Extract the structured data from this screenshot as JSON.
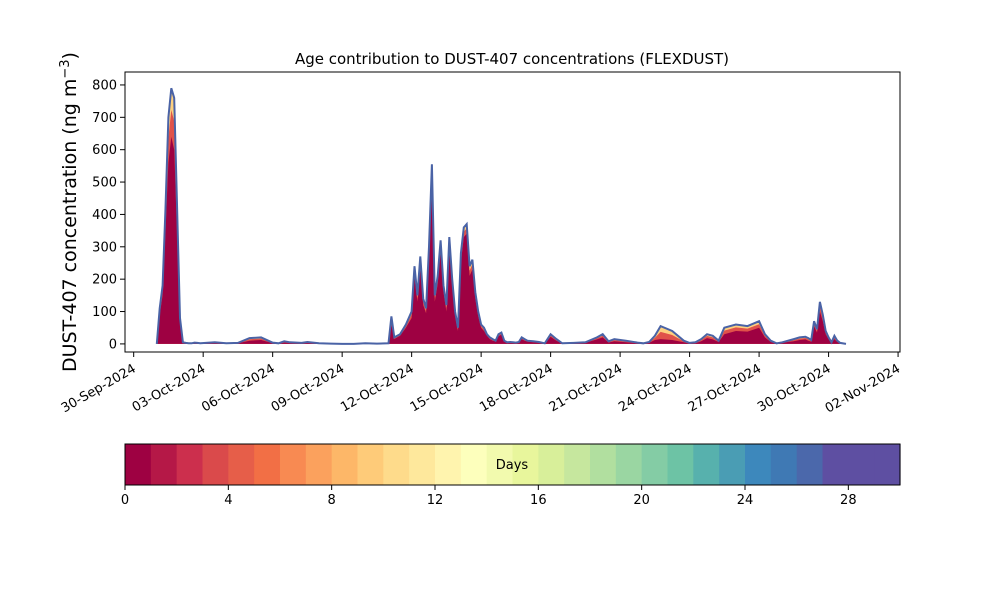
{
  "chart_data": {
    "type": "area",
    "title": "Age contribution to DUST-407 concentrations (FLEXDUST)",
    "ylabel_main": "DUST-407 concentration (ng m",
    "ylabel_sup": "−3",
    "ylabel_tail": ")",
    "xlabel": "",
    "xlim": [
      "2024-09-29T15:00",
      "2024-11-02T02:00"
    ],
    "ylim": [
      -25,
      840
    ],
    "yticks": [
      0,
      100,
      200,
      300,
      400,
      500,
      600,
      700,
      800
    ],
    "xticks": [
      {
        "date": "2024-09-30",
        "label": "30-Sep-2024"
      },
      {
        "date": "2024-10-03",
        "label": "03-Oct-2024"
      },
      {
        "date": "2024-10-06",
        "label": "06-Oct-2024"
      },
      {
        "date": "2024-10-09",
        "label": "09-Oct-2024"
      },
      {
        "date": "2024-10-12",
        "label": "12-Oct-2024"
      },
      {
        "date": "2024-10-15",
        "label": "15-Oct-2024"
      },
      {
        "date": "2024-10-18",
        "label": "18-Oct-2024"
      },
      {
        "date": "2024-10-21",
        "label": "21-Oct-2024"
      },
      {
        "date": "2024-10-24",
        "label": "24-Oct-2024"
      },
      {
        "date": "2024-10-27",
        "label": "27-Oct-2024"
      },
      {
        "date": "2024-10-30",
        "label": "30-Oct-2024"
      },
      {
        "date": "2024-11-02",
        "label": "02-Nov-2024"
      }
    ],
    "grid": false,
    "outline_color": "#4a63a6",
    "series": [
      {
        "x": [
          "2024-10-01T00:00",
          "2024-10-01T03:00",
          "2024-10-01T06:00",
          "2024-10-01T09:00",
          "2024-10-01T12:00",
          "2024-10-01T15:00",
          "2024-10-01T18:00",
          "2024-10-01T21:00",
          "2024-10-02T00:00",
          "2024-10-02T03:00",
          "2024-10-02T06:00",
          "2024-10-02T09:00",
          "2024-10-02T12:00",
          "2024-10-02T15:00",
          "2024-10-02T18:00",
          "2024-10-02T21:00",
          "2024-10-03T12:00",
          "2024-10-04T00:00",
          "2024-10-04T12:00",
          "2024-10-05T00:00",
          "2024-10-05T12:00",
          "2024-10-06T00:00",
          "2024-10-06T06:00",
          "2024-10-06T12:00",
          "2024-10-06T18:00",
          "2024-10-07T06:00",
          "2024-10-07T12:00",
          "2024-10-08T00:00",
          "2024-10-08T12:00",
          "2024-10-09T00:00",
          "2024-10-09T12:00",
          "2024-10-10T00:00",
          "2024-10-10T12:00",
          "2024-10-11T00:00",
          "2024-10-11T03:00",
          "2024-10-11T06:00",
          "2024-10-11T09:00",
          "2024-10-11T12:00",
          "2024-10-11T18:00",
          "2024-10-12T00:00",
          "2024-10-12T03:00",
          "2024-10-12T06:00",
          "2024-10-12T09:00",
          "2024-10-12T12:00",
          "2024-10-12T15:00",
          "2024-10-12T18:00",
          "2024-10-12T21:00",
          "2024-10-13T00:00",
          "2024-10-13T03:00",
          "2024-10-13T06:00",
          "2024-10-13T09:00",
          "2024-10-13T12:00",
          "2024-10-13T15:00",
          "2024-10-13T18:00",
          "2024-10-13T21:00",
          "2024-10-14T00:00",
          "2024-10-14T03:00",
          "2024-10-14T06:00",
          "2024-10-14T09:00",
          "2024-10-14T12:00",
          "2024-10-14T15:00",
          "2024-10-14T18:00",
          "2024-10-14T21:00",
          "2024-10-15T00:00",
          "2024-10-15T03:00",
          "2024-10-15T06:00",
          "2024-10-15T09:00",
          "2024-10-15T12:00",
          "2024-10-15T15:00",
          "2024-10-15T18:00",
          "2024-10-15T21:00",
          "2024-10-16T00:00",
          "2024-10-16T03:00",
          "2024-10-16T06:00",
          "2024-10-16T09:00",
          "2024-10-16T12:00",
          "2024-10-16T15:00",
          "2024-10-16T18:00",
          "2024-10-16T21:00",
          "2024-10-17T00:00",
          "2024-10-17T06:00",
          "2024-10-17T12:00",
          "2024-10-17T18:00",
          "2024-10-18T00:00",
          "2024-10-18T06:00",
          "2024-10-18T12:00",
          "2024-10-19T00:00",
          "2024-10-19T12:00",
          "2024-10-20T00:00",
          "2024-10-20T06:00",
          "2024-10-20T12:00",
          "2024-10-20T18:00",
          "2024-10-21T06:00",
          "2024-10-21T18:00",
          "2024-10-22T00:00",
          "2024-10-22T06:00",
          "2024-10-22T12:00",
          "2024-10-22T18:00",
          "2024-10-23T06:00",
          "2024-10-23T18:00",
          "2024-10-24T00:00",
          "2024-10-24T06:00",
          "2024-10-24T12:00",
          "2024-10-24T18:00",
          "2024-10-25T00:00",
          "2024-10-25T06:00",
          "2024-10-25T12:00",
          "2024-10-26T00:00",
          "2024-10-26T12:00",
          "2024-10-27T00:00",
          "2024-10-27T06:00",
          "2024-10-27T12:00",
          "2024-10-27T18:00",
          "2024-10-28T00:00",
          "2024-10-28T06:00",
          "2024-10-28T12:00",
          "2024-10-28T18:00",
          "2024-10-29T00:00",
          "2024-10-29T03:00",
          "2024-10-29T06:00",
          "2024-10-29T09:00",
          "2024-10-29T12:00",
          "2024-10-29T15:00",
          "2024-10-29T18:00",
          "2024-10-29T21:00",
          "2024-10-30T00:00",
          "2024-10-30T03:00",
          "2024-10-30T06:00",
          "2024-10-30T09:00",
          "2024-10-30T12:00",
          "2024-10-30T18:00",
          "2024-10-31T00:00",
          "2024-10-31T06:00",
          "2024-10-31T12:00",
          "2024-11-01T00:00",
          "2024-11-01T06:00"
        ],
        "total": [
          0,
          110,
          180,
          420,
          700,
          790,
          760,
          420,
          80,
          5,
          3,
          2,
          2,
          4,
          3,
          2,
          5,
          2,
          3,
          18,
          20,
          4,
          2,
          8,
          5,
          3,
          6,
          2,
          1,
          0,
          0,
          2,
          1,
          2,
          85,
          20,
          25,
          30,
          60,
          100,
          240,
          150,
          270,
          140,
          110,
          300,
          555,
          150,
          210,
          320,
          180,
          120,
          330,
          200,
          100,
          50,
          280,
          360,
          370,
          240,
          260,
          160,
          100,
          60,
          50,
          30,
          20,
          15,
          10,
          30,
          35,
          10,
          5,
          6,
          5,
          4,
          6,
          20,
          15,
          10,
          8,
          6,
          2,
          30,
          15,
          2,
          3,
          5,
          20,
          30,
          8,
          15,
          10,
          4,
          2,
          6,
          25,
          55,
          40,
          10,
          3,
          5,
          15,
          30,
          25,
          10,
          50,
          60,
          55,
          70,
          30,
          10,
          2,
          5,
          10,
          15,
          20,
          22,
          18,
          12,
          70,
          45,
          130,
          90,
          40,
          20,
          5,
          25,
          10,
          3,
          0
        ],
        "fresh": [
          0,
          90,
          150,
          350,
          560,
          640,
          600,
          340,
          60,
          3,
          2,
          1,
          1,
          2,
          2,
          1,
          3,
          1,
          2,
          10,
          12,
          2,
          1,
          4,
          3,
          2,
          3,
          1,
          0,
          0,
          0,
          1,
          0,
          1,
          60,
          15,
          20,
          25,
          50,
          80,
          210,
          130,
          240,
          120,
          95,
          270,
          500,
          130,
          185,
          290,
          160,
          100,
          300,
          175,
          85,
          40,
          250,
          330,
          340,
          210,
          230,
          140,
          85,
          50,
          40,
          25,
          15,
          10,
          8,
          24,
          28,
          7,
          3,
          4,
          3,
          2,
          4,
          15,
          10,
          7,
          5,
          4,
          1,
          22,
          10,
          1,
          2,
          3,
          14,
          20,
          4,
          8,
          5,
          2,
          1,
          3,
          12,
          15,
          12,
          5,
          1,
          2,
          8,
          18,
          14,
          6,
          30,
          40,
          38,
          50,
          20,
          6,
          1,
          3,
          6,
          8,
          12,
          14,
          10,
          7,
          55,
          35,
          100,
          70,
          30,
          14,
          3,
          15,
          6,
          2,
          0
        ]
      }
    ],
    "colorbar": {
      "label": "Days",
      "vmin": 0,
      "vmax": 30,
      "ticks": [
        0,
        4,
        8,
        12,
        16,
        20,
        24,
        28
      ],
      "colors": [
        "#9e0142",
        "#b51847",
        "#cc2f4d",
        "#da4a4b",
        "#e65e49",
        "#f26f45",
        "#f88a52",
        "#fba15d",
        "#fdb768",
        "#fecb79",
        "#fedb8b",
        "#fee89c",
        "#fff4ae",
        "#fdffbc",
        "#f2faae",
        "#e8f69c",
        "#d8ef9a",
        "#c6e79e",
        "#b1df9f",
        "#9ad6a2",
        "#84cca5",
        "#6dc3a5",
        "#57b1ad",
        "#4a9db4",
        "#3d88bc",
        "#3f79b4",
        "#4b68ab",
        "#5e4fa2",
        "#5e4fa2",
        "#5e4fa2"
      ]
    }
  }
}
